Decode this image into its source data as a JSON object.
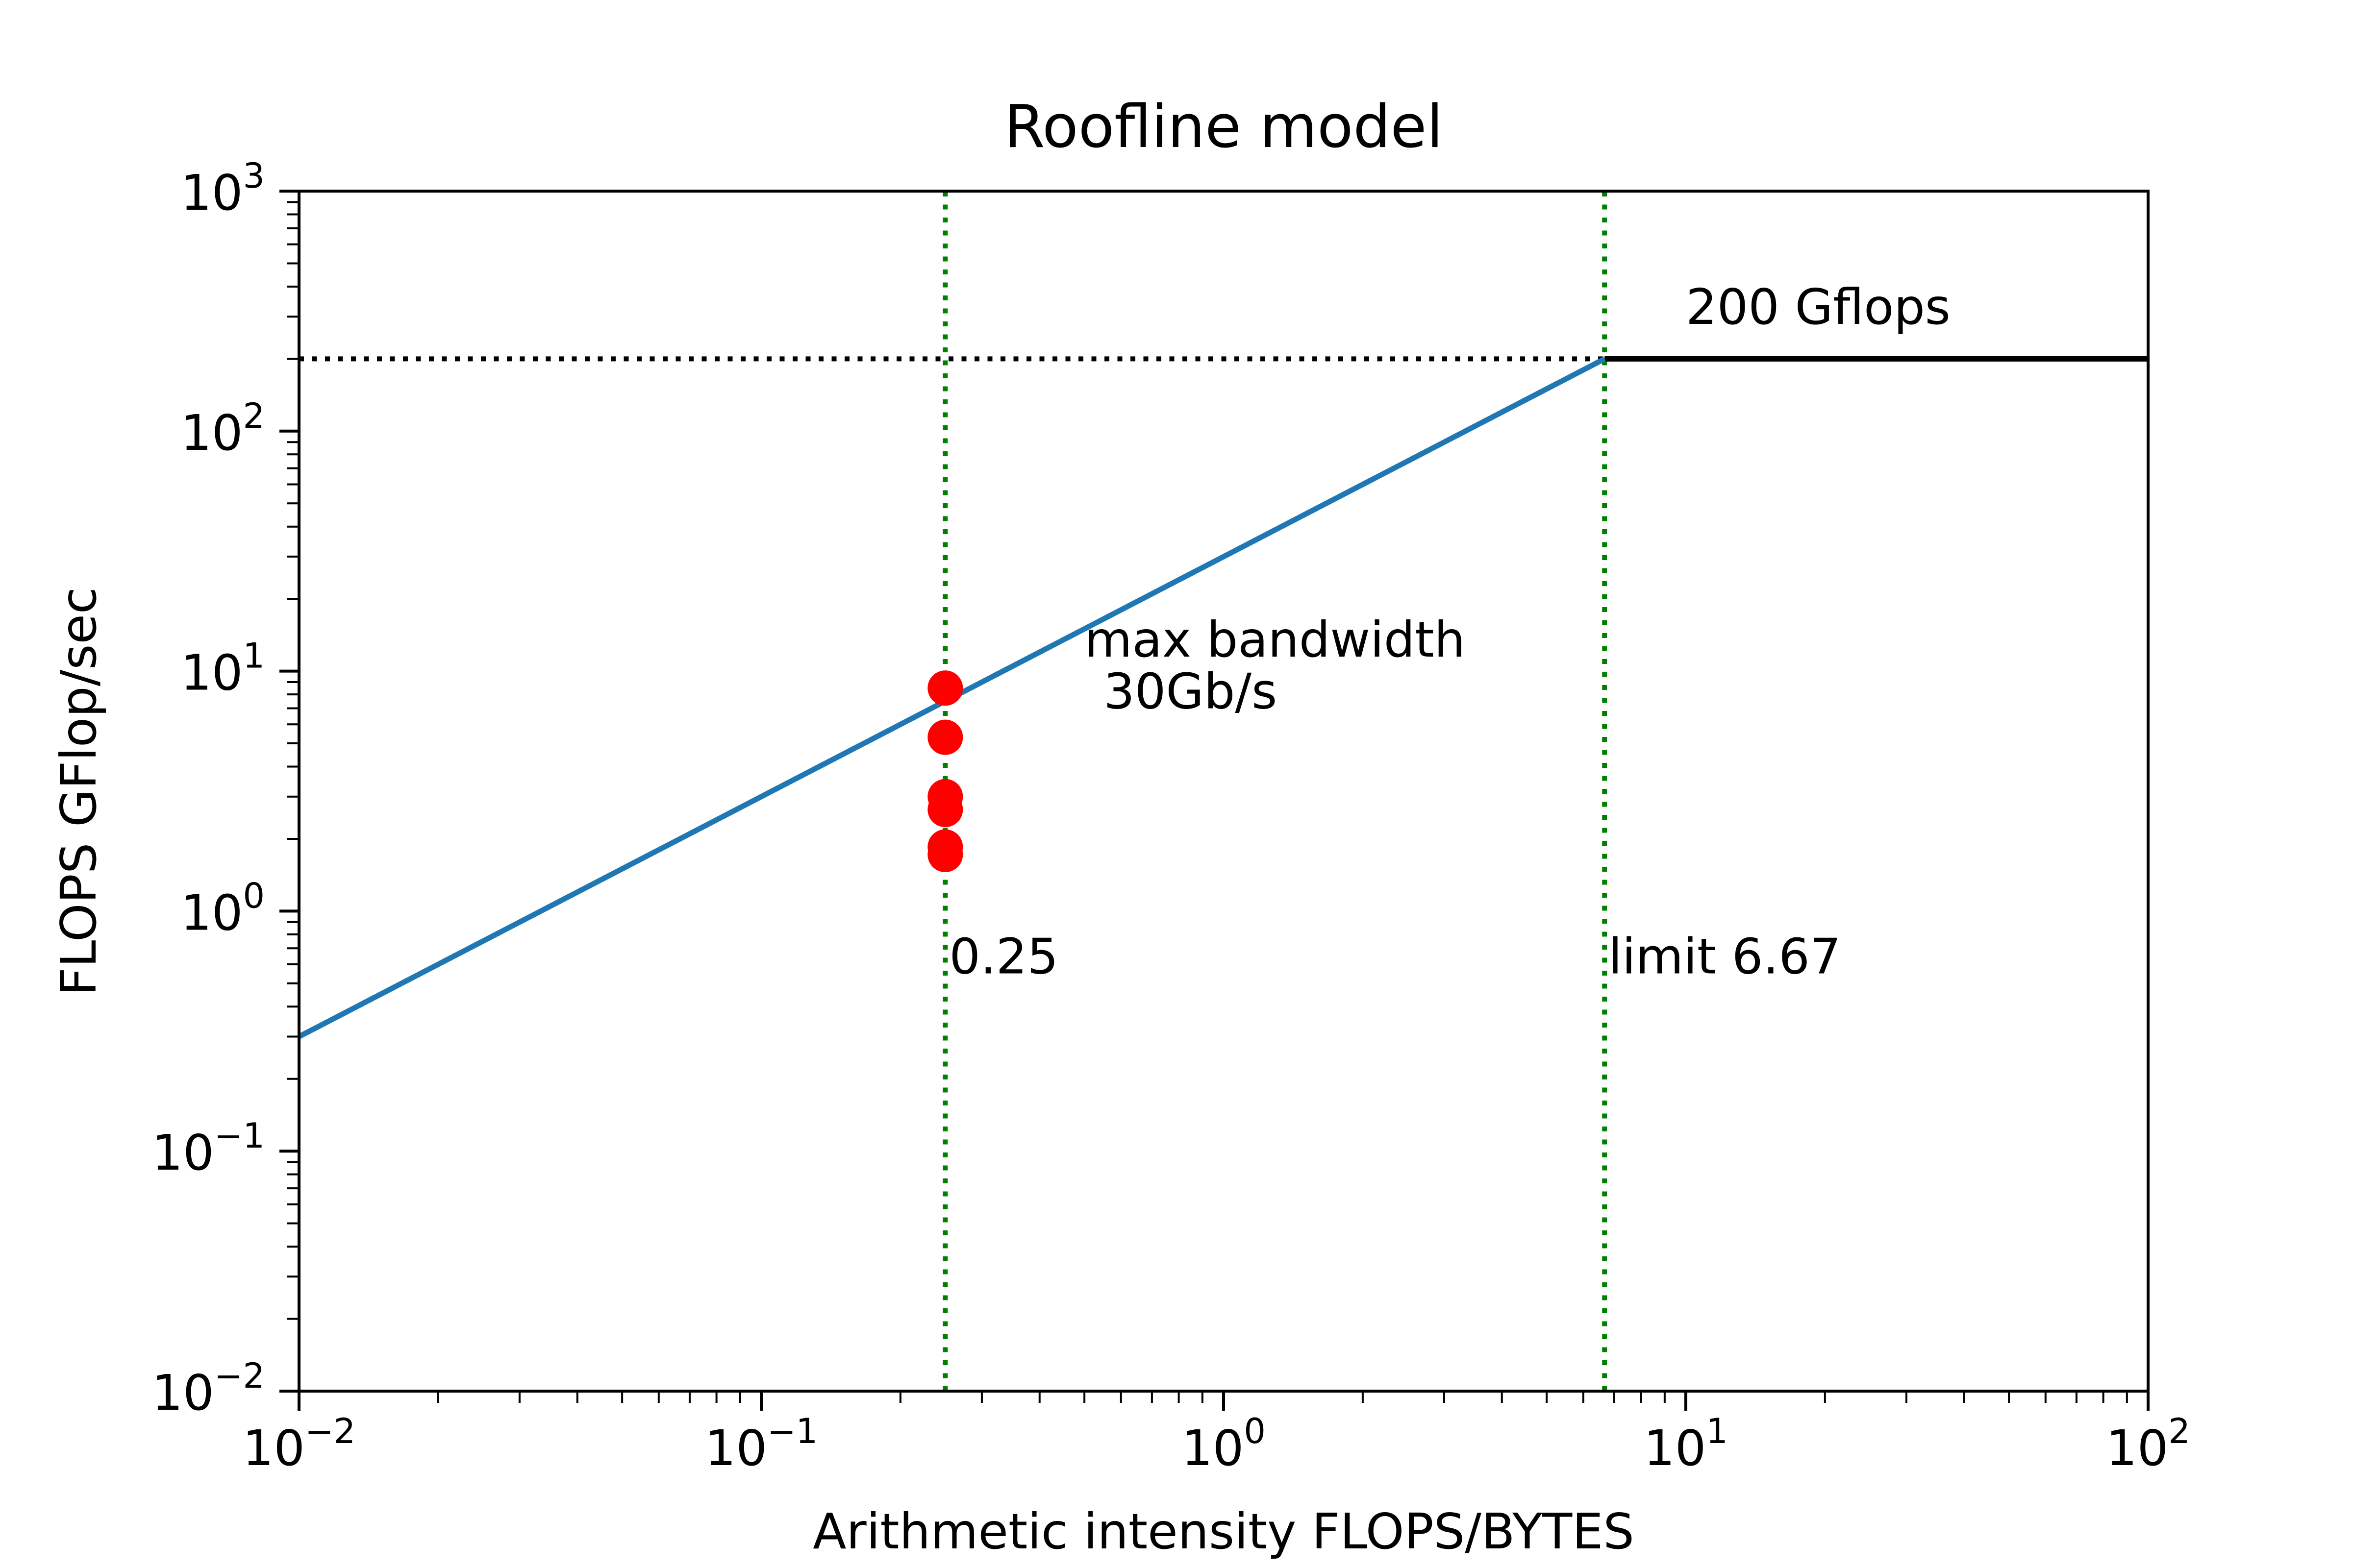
{
  "chart_data": {
    "type": "line",
    "title": "Roofline model",
    "xlabel": "Arithmetic intensity FLOPS/BYTES",
    "ylabel": "FLOPS GFlop/sec",
    "xscale": "log",
    "yscale": "log",
    "xlim": [
      0.01,
      100
    ],
    "ylim": [
      0.01,
      1000
    ],
    "grid": false,
    "x_ticks": [
      {
        "value": 0.01,
        "base": "10",
        "exp": "−2"
      },
      {
        "value": 0.1,
        "base": "10",
        "exp": "−1"
      },
      {
        "value": 1,
        "base": "10",
        "exp": "0"
      },
      {
        "value": 10,
        "base": "10",
        "exp": "1"
      },
      {
        "value": 100,
        "base": "10",
        "exp": "2"
      }
    ],
    "y_ticks": [
      {
        "value": 0.01,
        "base": "10",
        "exp": "−2"
      },
      {
        "value": 0.1,
        "base": "10",
        "exp": "−1"
      },
      {
        "value": 1,
        "base": "10",
        "exp": "0"
      },
      {
        "value": 10,
        "base": "10",
        "exp": "1"
      },
      {
        "value": 100,
        "base": "10",
        "exp": "2"
      },
      {
        "value": 1000,
        "base": "10",
        "exp": "3"
      }
    ],
    "series": [
      {
        "role": "bandwidth",
        "color": "#1f77b4",
        "style": "solid",
        "x": [
          0.01,
          6.67
        ],
        "y": [
          0.3,
          200
        ]
      },
      {
        "role": "peak",
        "color": "#000000",
        "style": "solid",
        "x": [
          6.67,
          100
        ],
        "y": [
          200,
          200
        ]
      },
      {
        "role": "peak-extension",
        "color": "#000000",
        "style": "dotted",
        "x": [
          0.01,
          6.67
        ],
        "y": [
          200,
          200
        ]
      },
      {
        "role": "intensity-marker",
        "color": "#008000",
        "style": "dotted",
        "x": [
          0.25,
          0.25
        ],
        "y": [
          0.01,
          1000
        ]
      },
      {
        "role": "limit-marker",
        "color": "#008000",
        "style": "dotted",
        "x": [
          6.67,
          6.67
        ],
        "y": [
          0.01,
          1000
        ]
      }
    ],
    "points": {
      "color": "#ff0000",
      "x": [
        0.25,
        0.25,
        0.25,
        0.25,
        0.25,
        0.25
      ],
      "y": [
        8.5,
        5.3,
        3.0,
        2.65,
        1.85,
        1.72
      ]
    },
    "annotations": [
      {
        "text": "200 Gflops",
        "x": 10,
        "y": 280
      },
      {
        "text": "max bandwidth",
        "x": 0.5,
        "y": 11.5
      },
      {
        "text": "30Gb/s",
        "x": 0.55,
        "y": 7.0
      },
      {
        "text": "0.25",
        "x": 0.255,
        "y": 0.55
      },
      {
        "text": "limit 6.67",
        "x": 6.8,
        "y": 0.55
      }
    ]
  }
}
